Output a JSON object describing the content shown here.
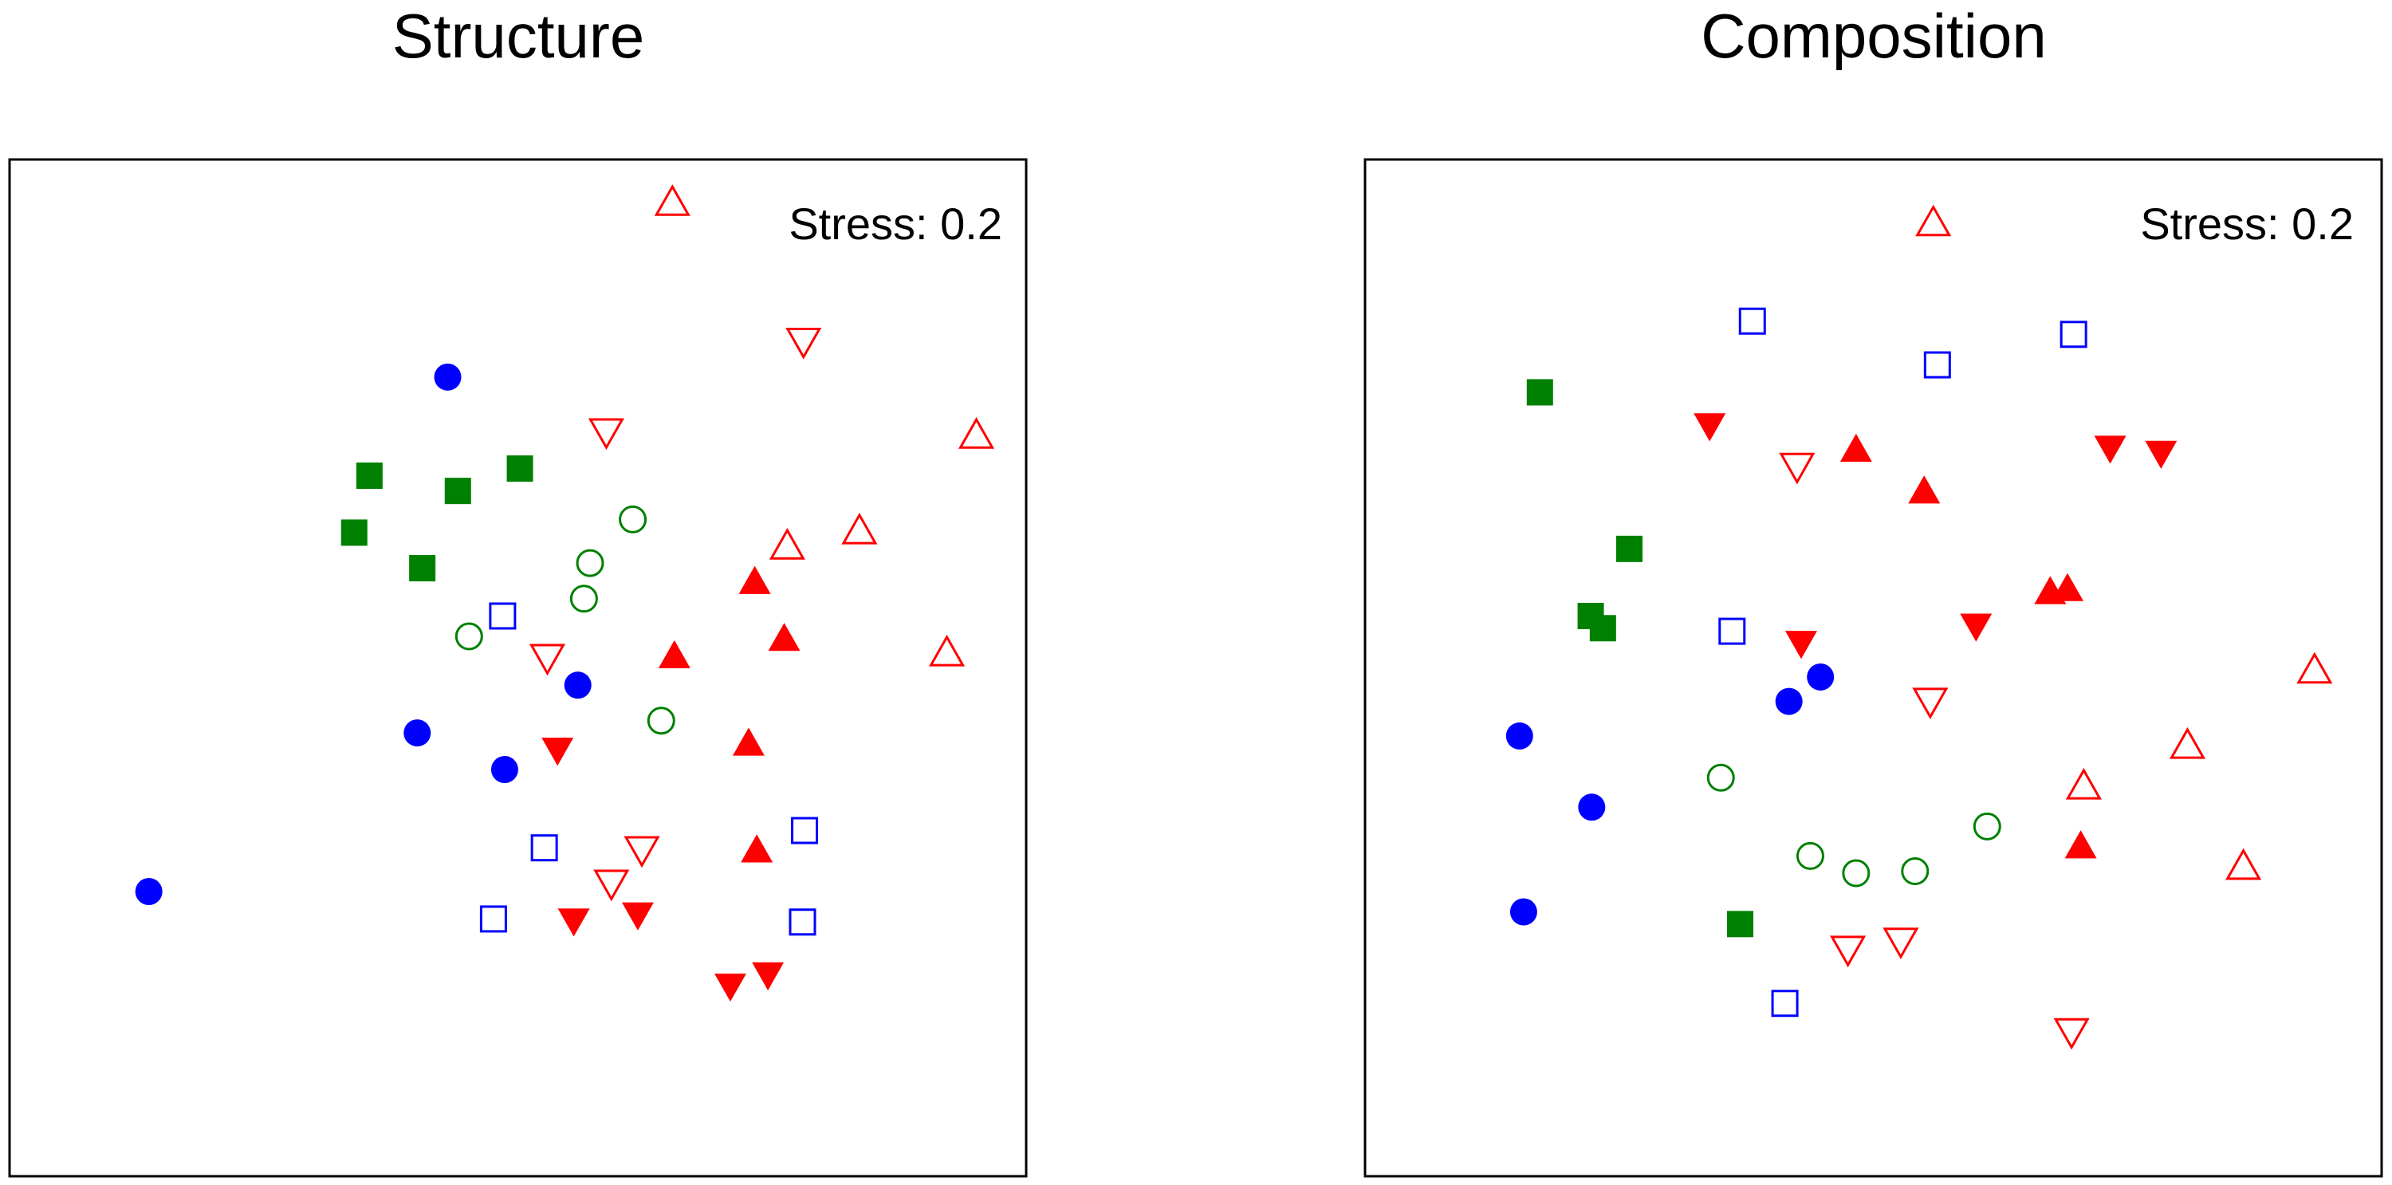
{
  "chart_data": [
    {
      "type": "scatter",
      "title": "Structure",
      "annotation": "Stress: 0.2",
      "xlim": [
        0,
        100
      ],
      "ylim": [
        0,
        100
      ],
      "grid": false,
      "series": [
        {
          "marker": "circle",
          "filled": true,
          "color": "#0000ff",
          "points": [
            [
              43.1,
              78.6
            ],
            [
              55.9,
              48.3
            ],
            [
              40.1,
              43.6
            ],
            [
              48.7,
              40.0
            ],
            [
              13.7,
              28.0
            ]
          ]
        },
        {
          "marker": "circle",
          "filled": false,
          "color": "#008000",
          "points": [
            [
              61.3,
              64.6
            ],
            [
              57.1,
              60.3
            ],
            [
              56.5,
              56.8
            ],
            [
              45.2,
              53.1
            ],
            [
              64.1,
              44.8
            ]
          ]
        },
        {
          "marker": "square",
          "filled": true,
          "color": "#008000",
          "points": [
            [
              35.4,
              68.9
            ],
            [
              44.1,
              67.4
            ],
            [
              50.2,
              69.6
            ],
            [
              33.9,
              63.3
            ],
            [
              40.6,
              59.8
            ]
          ]
        },
        {
          "marker": "square",
          "filled": false,
          "color": "#0000ff",
          "points": [
            [
              48.5,
              55.1
            ],
            [
              52.6,
              32.3
            ],
            [
              78.2,
              34.0
            ],
            [
              47.6,
              25.3
            ],
            [
              78.0,
              25.0
            ]
          ]
        },
        {
          "marker": "triangle-up",
          "filled": false,
          "color": "#ff0000",
          "points": [
            [
              65.2,
              95.6
            ],
            [
              95.1,
              72.7
            ],
            [
              83.6,
              63.3
            ],
            [
              76.5,
              61.8
            ],
            [
              92.2,
              51.3
            ]
          ]
        },
        {
          "marker": "triangle-up",
          "filled": true,
          "color": "#ff0000",
          "points": [
            [
              73.3,
              58.3
            ],
            [
              76.2,
              52.7
            ],
            [
              65.4,
              51.0
            ],
            [
              72.7,
              42.4
            ],
            [
              73.5,
              31.9
            ]
          ]
        },
        {
          "marker": "triangle-down",
          "filled": false,
          "color": "#ff0000",
          "points": [
            [
              78.1,
              82.3
            ],
            [
              58.7,
              73.4
            ],
            [
              52.9,
              51.2
            ],
            [
              62.2,
              32.3
            ],
            [
              59.2,
              29.0
            ]
          ]
        },
        {
          "marker": "triangle-down",
          "filled": true,
          "color": "#ff0000",
          "points": [
            [
              53.9,
              42.1
            ],
            [
              55.5,
              25.3
            ],
            [
              61.8,
              25.9
            ],
            [
              74.6,
              20.0
            ],
            [
              70.9,
              18.9
            ]
          ]
        }
      ]
    },
    {
      "type": "scatter",
      "title": "Composition",
      "annotation": "Stress: 0.2",
      "xlim": [
        0,
        100
      ],
      "ylim": [
        0,
        100
      ],
      "grid": false,
      "series": [
        {
          "marker": "circle",
          "filled": true,
          "color": "#0000ff",
          "points": [
            [
              44.8,
              49.1
            ],
            [
              41.7,
              46.7
            ],
            [
              15.2,
              43.3
            ],
            [
              22.3,
              36.3
            ],
            [
              15.6,
              26.0
            ]
          ]
        },
        {
          "marker": "circle",
          "filled": false,
          "color": "#008000",
          "points": [
            [
              35.0,
              39.2
            ],
            [
              43.8,
              31.5
            ],
            [
              48.3,
              29.8
            ],
            [
              54.1,
              30.0
            ],
            [
              61.2,
              34.4
            ]
          ]
        },
        {
          "marker": "square",
          "filled": true,
          "color": "#008000",
          "points": [
            [
              17.2,
              77.1
            ],
            [
              26.0,
              61.7
            ],
            [
              22.2,
              55.1
            ],
            [
              23.4,
              53.9
            ],
            [
              36.9,
              24.8
            ]
          ]
        },
        {
          "marker": "square",
          "filled": false,
          "color": "#0000ff",
          "points": [
            [
              38.1,
              84.1
            ],
            [
              56.3,
              79.8
            ],
            [
              69.7,
              82.8
            ],
            [
              36.1,
              53.6
            ],
            [
              41.3,
              17.0
            ]
          ]
        },
        {
          "marker": "triangle-up",
          "filled": false,
          "color": "#ff0000",
          "points": [
            [
              55.9,
              93.6
            ],
            [
              93.4,
              49.6
            ],
            [
              80.9,
              42.2
            ],
            [
              70.7,
              38.2
            ],
            [
              86.4,
              30.3
            ]
          ]
        },
        {
          "marker": "triangle-up",
          "filled": true,
          "color": "#ff0000",
          "points": [
            [
              48.3,
              71.3
            ],
            [
              55.0,
              67.2
            ],
            [
              67.4,
              57.3
            ],
            [
              69.1,
              57.6
            ],
            [
              70.4,
              32.3
            ]
          ]
        },
        {
          "marker": "triangle-down",
          "filled": false,
          "color": "#ff0000",
          "points": [
            [
              42.5,
              70.0
            ],
            [
              55.6,
              46.9
            ],
            [
              47.5,
              22.5
            ],
            [
              52.7,
              23.3
            ],
            [
              69.5,
              14.4
            ]
          ]
        },
        {
          "marker": "triangle-down",
          "filled": true,
          "color": "#ff0000",
          "points": [
            [
              33.9,
              74.0
            ],
            [
              73.3,
              71.8
            ],
            [
              78.3,
              71.3
            ],
            [
              60.1,
              54.3
            ],
            [
              42.9,
              52.6
            ]
          ]
        }
      ]
    }
  ]
}
